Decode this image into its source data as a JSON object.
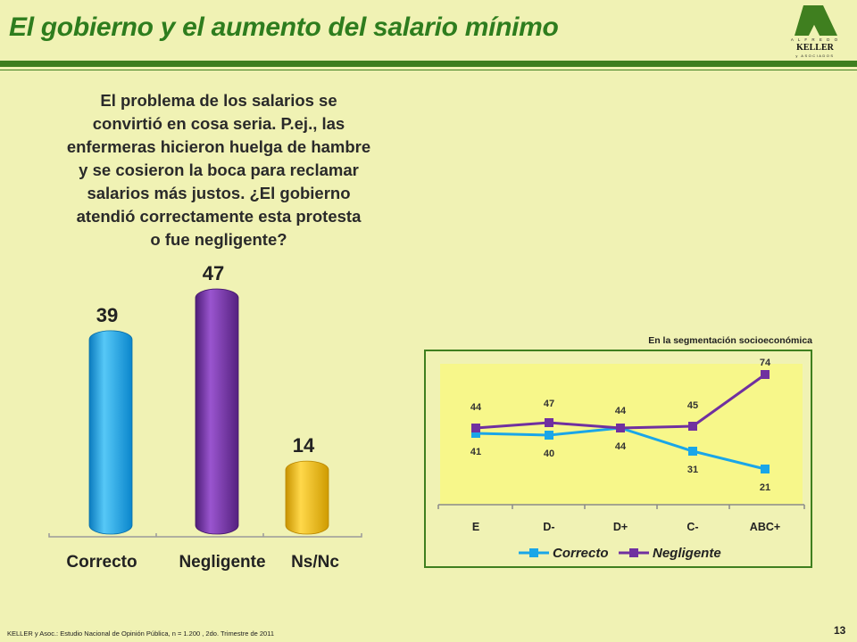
{
  "header": {
    "title": "El gobierno y el aumento del salario mínimo",
    "logo_top": "A L F R E D O",
    "logo_name": "KELLER",
    "logo_sub": "y ASOCIADOS"
  },
  "question": {
    "lines": [
      "El problema de los salarios se",
      "convirtió en cosa seria. P.ej., las",
      "enfermeras hicieron huelga de hambre",
      "y se cosieron la boca para reclamar",
      "salarios más justos. ¿El gobierno",
      "atendió correctamente esta protesta",
      "o fue negligente?"
    ]
  },
  "footer": {
    "source": "KELLER y Asoc.: Estudio Nacional de Opinión Pública, n = 1.200 , 2do. Trimestre de 2011",
    "page_number": "13"
  },
  "segment_panel": {
    "title": "En la segmentación socioeconómica"
  },
  "colors": {
    "background": "#f0f2b4",
    "brand_green": "#3f7f1f",
    "correcto": "#1aa6e8",
    "negligente": "#7030a0",
    "nsnc": "#f2c200",
    "plot_area": "#f7f78a"
  },
  "chart_data": [
    {
      "type": "bar",
      "categories": [
        "Correcto",
        "Negligente",
        "Ns/Nc"
      ],
      "values": [
        39,
        47,
        14
      ],
      "data_labels": [
        "39",
        "47",
        "14"
      ],
      "ylim": [
        0,
        50
      ],
      "grid": false,
      "legend": "none"
    },
    {
      "type": "line",
      "title": "En la segmentación socioeconómica",
      "categories": [
        "E",
        "D-",
        "D+",
        "C-",
        "ABC+"
      ],
      "series": [
        {
          "name": "Correcto",
          "values": [
            41,
            40,
            44,
            31,
            21
          ],
          "labels": [
            "41",
            "40",
            "44",
            "31",
            "21"
          ]
        },
        {
          "name": "Negligente",
          "values": [
            44,
            47,
            44,
            45,
            74
          ],
          "labels": [
            "44",
            "47",
            "44",
            "45",
            "74"
          ]
        }
      ],
      "grid": false,
      "legend": "bottom"
    }
  ]
}
